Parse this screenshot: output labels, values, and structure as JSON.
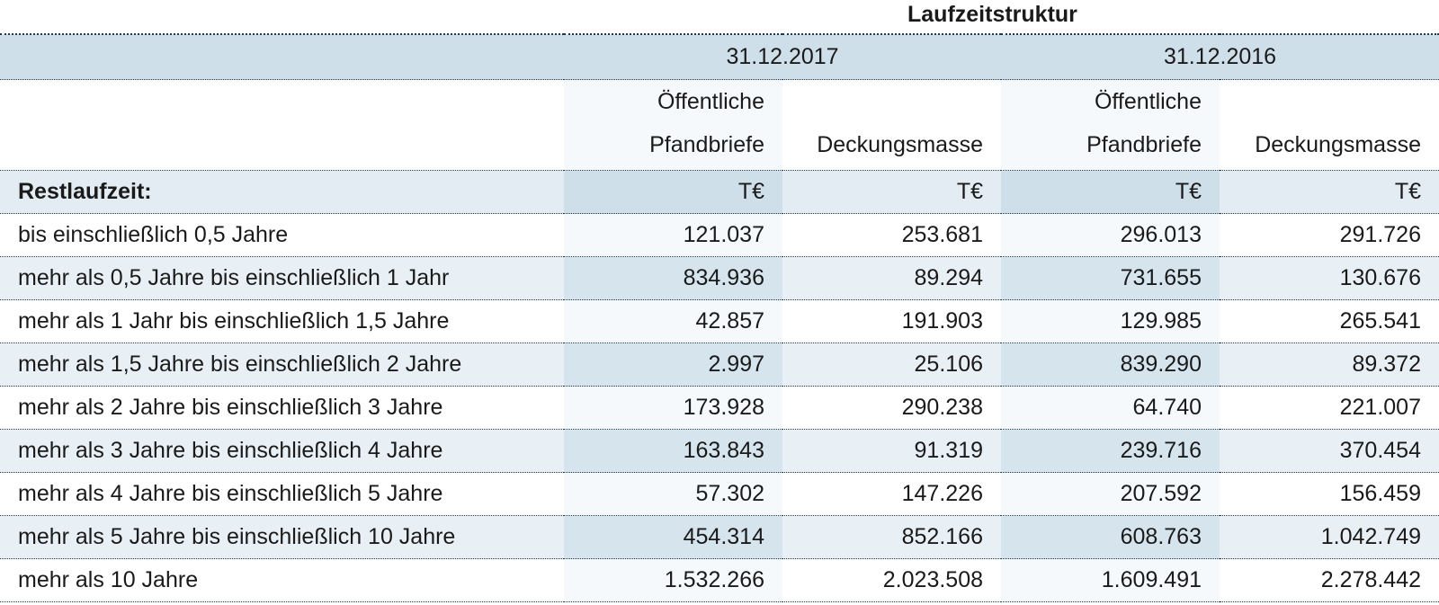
{
  "title": "Laufzeitstruktur",
  "dates": [
    "31.12.2017",
    "31.12.2016"
  ],
  "column_headers": [
    {
      "line1": "Öffentliche",
      "line2": "Pfandbriefe"
    },
    {
      "line1": "",
      "line2": "Deckungsmasse"
    },
    {
      "line1": "Öffentliche",
      "line2": "Pfandbriefe"
    },
    {
      "line1": "",
      "line2": "Deckungsmasse"
    }
  ],
  "unit_row": {
    "label": "Restlaufzeit:",
    "units": [
      "T€",
      "T€",
      "T€",
      "T€"
    ]
  },
  "rows": [
    {
      "label": "bis einschließlich 0,5 Jahre",
      "values": [
        "121.037",
        "253.681",
        "296.013",
        "291.726"
      ]
    },
    {
      "label": "mehr als 0,5 Jahre bis einschließlich 1 Jahr",
      "values": [
        "834.936",
        "89.294",
        "731.655",
        "130.676"
      ]
    },
    {
      "label": "mehr als 1 Jahr bis einschließlich 1,5 Jahre",
      "values": [
        "42.857",
        "191.903",
        "129.985",
        "265.541"
      ]
    },
    {
      "label": "mehr als 1,5 Jahre bis einschließlich 2 Jahre",
      "values": [
        "2.997",
        "25.106",
        "839.290",
        "89.372"
      ]
    },
    {
      "label": "mehr als 2 Jahre bis einschließlich 3 Jahre",
      "values": [
        "173.928",
        "290.238",
        "64.740",
        "221.007"
      ]
    },
    {
      "label": "mehr als 3 Jahre bis einschließlich 4 Jahre",
      "values": [
        "163.843",
        "91.319",
        "239.716",
        "370.454"
      ]
    },
    {
      "label": "mehr als 4 Jahre bis einschließlich 5 Jahre",
      "values": [
        "57.302",
        "147.226",
        "207.592",
        "156.459"
      ]
    },
    {
      "label": "mehr als 5 Jahre bis einschließlich 10 Jahre",
      "values": [
        "454.314",
        "852.166",
        "608.763",
        "1.042.749"
      ]
    },
    {
      "label": "mehr als 10 Jahre",
      "values": [
        "1.532.266",
        "2.023.508",
        "1.609.491",
        "2.278.442"
      ]
    }
  ]
}
